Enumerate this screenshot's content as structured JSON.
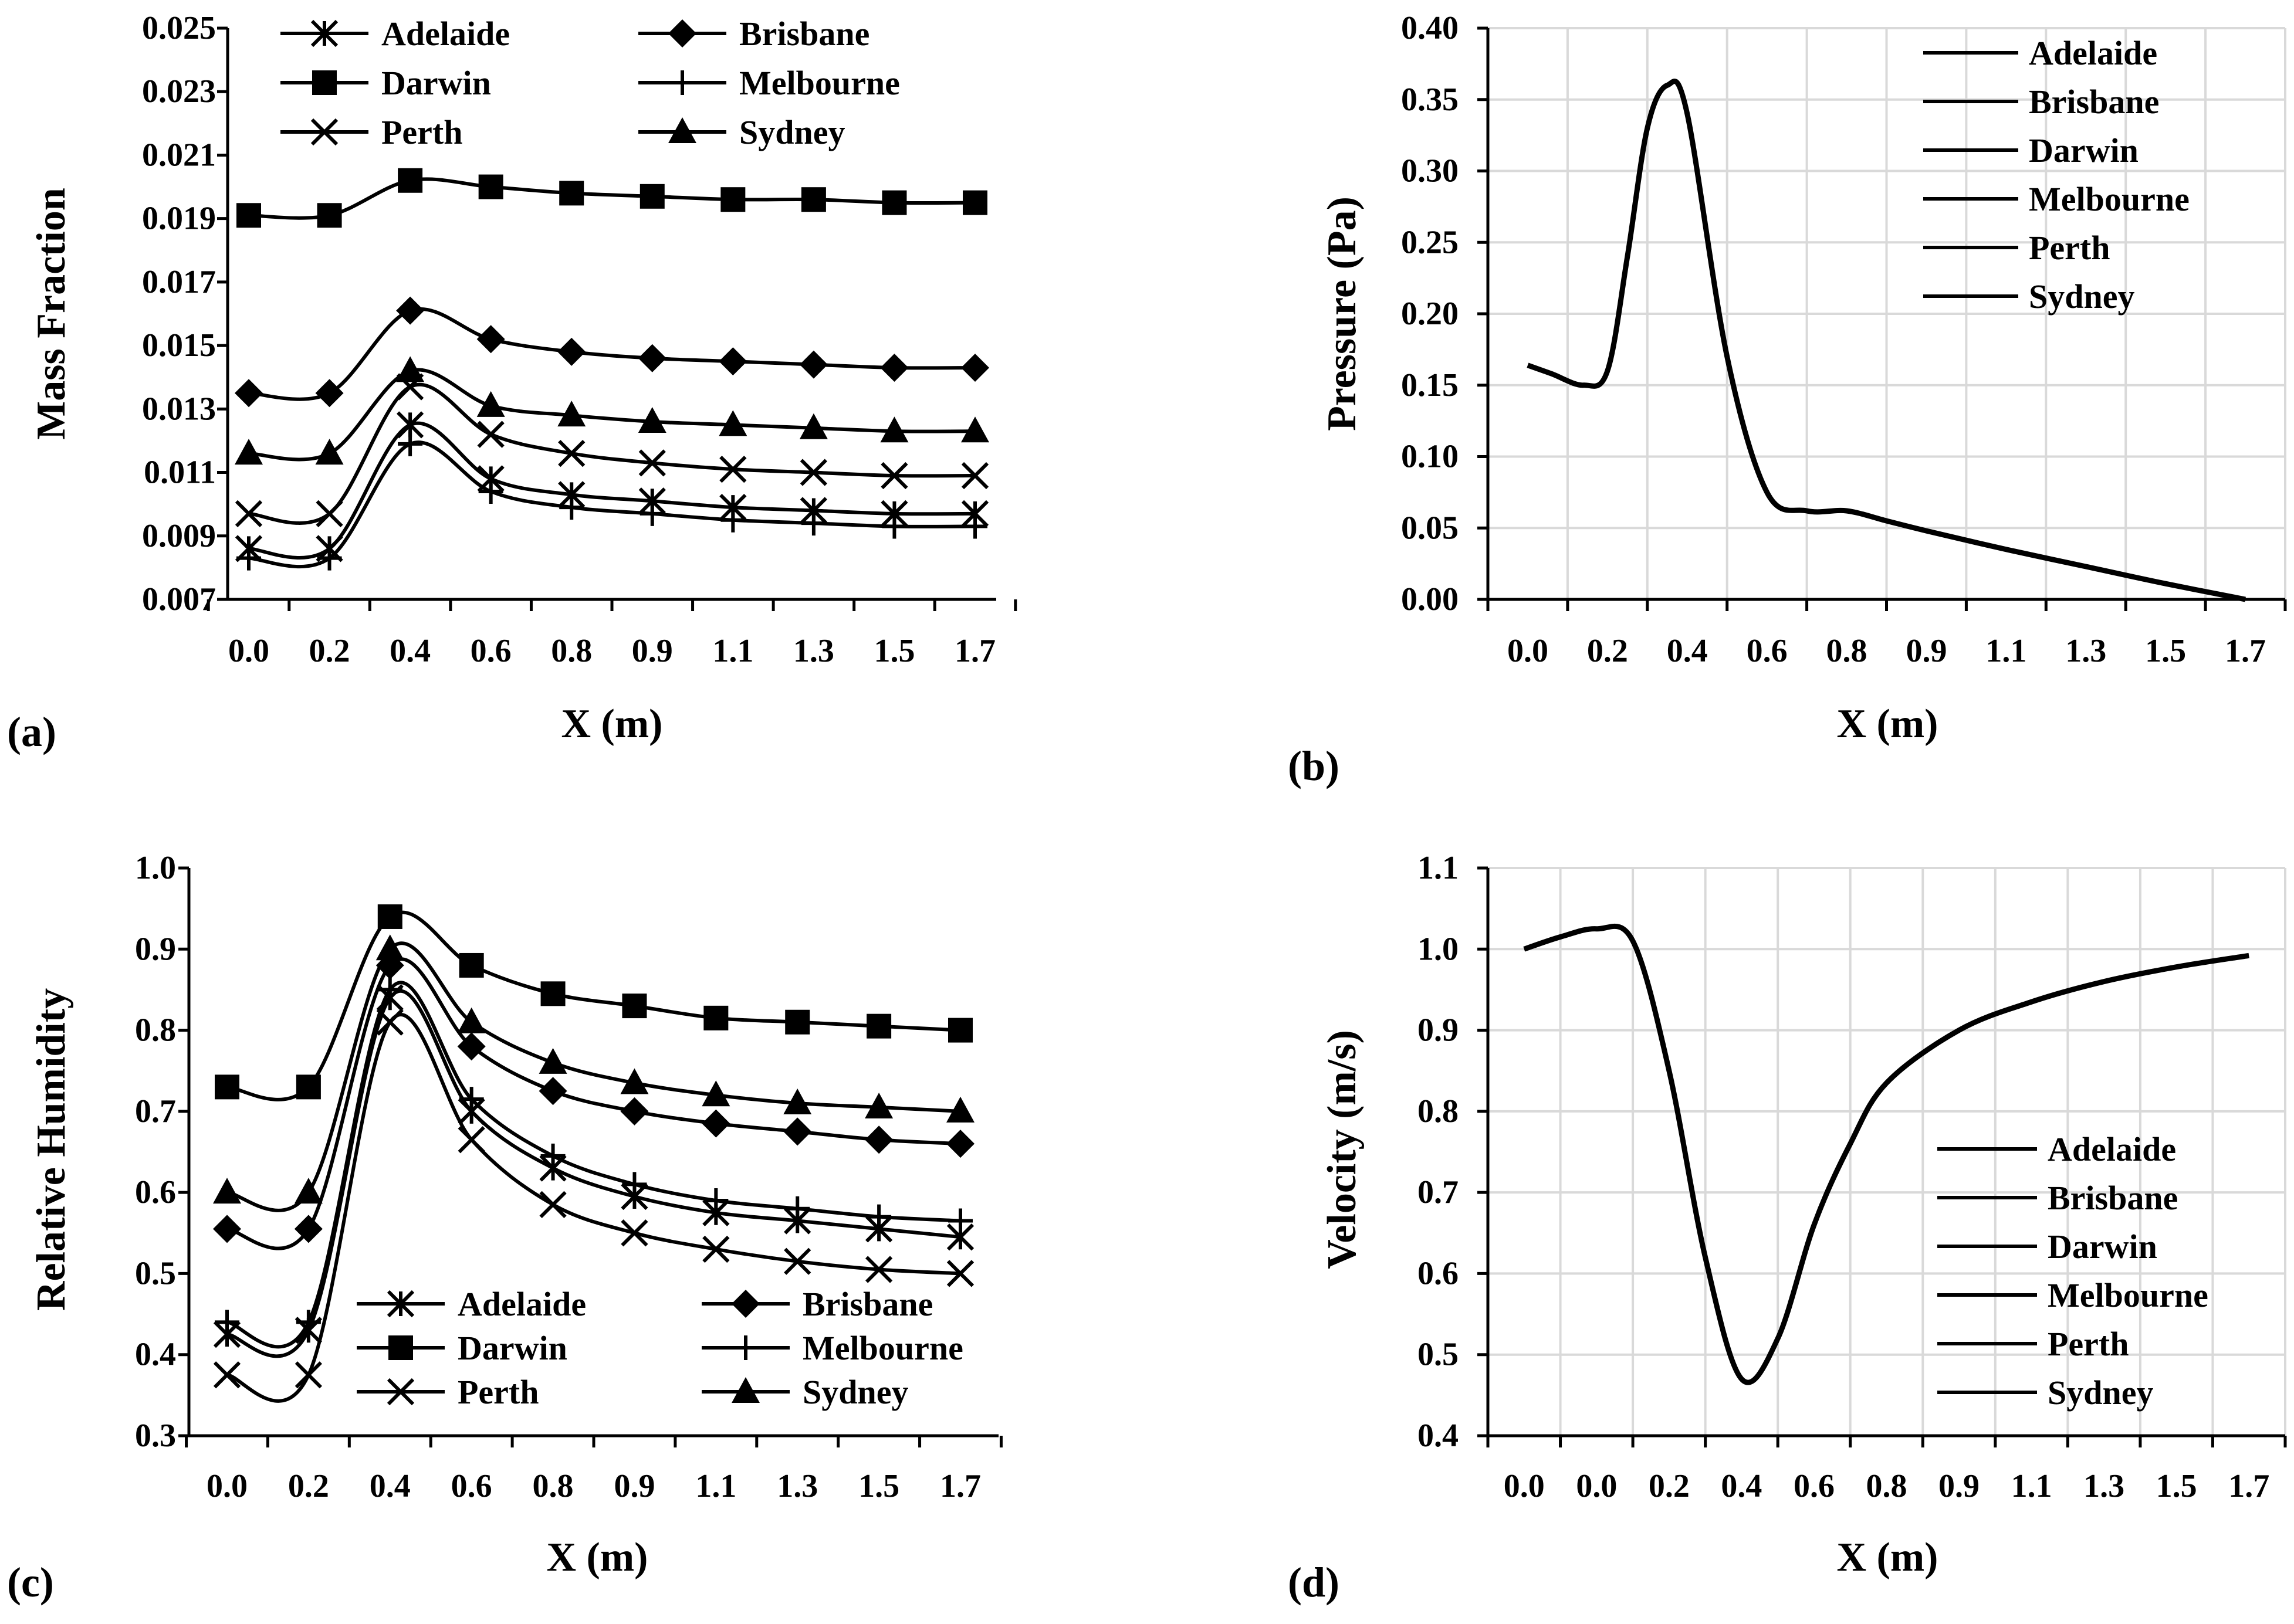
{
  "figure": {
    "panels": [
      "(a)",
      "(b)",
      "(c)",
      "(d)"
    ],
    "marker_names": {
      "Adelaide": "asterisk",
      "Brisbane": "diamond",
      "Darwin": "square",
      "Melbourne": "plus",
      "Perth": "cross",
      "Sydney": "triangle"
    },
    "line_color": "#000000",
    "grid_color": "#d9d9d9",
    "background": "#ffffff"
  },
  "chart_data": [
    {
      "id": "a",
      "type": "line",
      "panel_label": "(a)",
      "xlabel": "X (m)",
      "ylabel": "Mass Fraction",
      "categories": [
        "0.0",
        "0.2",
        "0.4",
        "0.6",
        "0.8",
        "0.9",
        "1.1",
        "1.3",
        "1.5",
        "1.7"
      ],
      "yticks": [
        "0.007",
        "0.009",
        "0.011",
        "0.013",
        "0.015",
        "0.017",
        "0.019",
        "0.021",
        "0.023",
        "0.025"
      ],
      "ylim": [
        0.007,
        0.025
      ],
      "grid": false,
      "legend_position": "top",
      "legend_columns": 2,
      "series": [
        {
          "name": "Adelaide",
          "marker": "asterisk",
          "values": [
            0.0086,
            0.0086,
            0.0125,
            0.0108,
            0.0103,
            0.0101,
            0.0099,
            0.0098,
            0.0097,
            0.0097
          ]
        },
        {
          "name": "Brisbane",
          "marker": "diamond",
          "values": [
            0.0135,
            0.0135,
            0.0161,
            0.0152,
            0.0148,
            0.0146,
            0.0145,
            0.0144,
            0.0143,
            0.0143
          ]
        },
        {
          "name": "Darwin",
          "marker": "square",
          "values": [
            0.0191,
            0.0191,
            0.0202,
            0.02,
            0.0198,
            0.0197,
            0.0196,
            0.0196,
            0.0195,
            0.0195
          ]
        },
        {
          "name": "Melbourne",
          "marker": "plus",
          "values": [
            0.0083,
            0.0083,
            0.0119,
            0.0104,
            0.0099,
            0.0097,
            0.0095,
            0.0094,
            0.0093,
            0.0093
          ]
        },
        {
          "name": "Perth",
          "marker": "cross",
          "values": [
            0.0097,
            0.0097,
            0.0137,
            0.0122,
            0.0116,
            0.0113,
            0.0111,
            0.011,
            0.0109,
            0.0109
          ]
        },
        {
          "name": "Sydney",
          "marker": "triangle",
          "values": [
            0.0116,
            0.0116,
            0.0142,
            0.0131,
            0.0128,
            0.0126,
            0.0125,
            0.0124,
            0.0123,
            0.0123
          ]
        }
      ]
    },
    {
      "id": "b",
      "type": "line",
      "panel_label": "(b)",
      "xlabel": "X (m)",
      "ylabel": "Pressure (Pa)",
      "categories": [
        "0.0",
        "0.2",
        "0.4",
        "0.6",
        "0.8",
        "0.9",
        "1.1",
        "1.3",
        "1.5",
        "1.7"
      ],
      "yticks": [
        "0.00",
        "0.05",
        "0.10",
        "0.15",
        "0.20",
        "0.25",
        "0.30",
        "0.35",
        "0.40"
      ],
      "ylim": [
        0.0,
        0.4
      ],
      "grid": true,
      "legend_position": "top-right",
      "legend_columns": 1,
      "curve_x_range": [
        0,
        9
      ],
      "curve": {
        "x": [
          0,
          0.3,
          0.7,
          1.0,
          1.25,
          1.5,
          1.75,
          2.0,
          2.5,
          3.0,
          3.5,
          4.0,
          4.5,
          5.0,
          6.0,
          7.0,
          8.0,
          9.0
        ],
        "y": [
          0.164,
          0.158,
          0.15,
          0.16,
          0.24,
          0.33,
          0.36,
          0.34,
          0.17,
          0.075,
          0.062,
          0.062,
          0.055,
          0.048,
          0.035,
          0.023,
          0.011,
          0.0
        ]
      },
      "series": [
        {
          "name": "Adelaide"
        },
        {
          "name": "Brisbane"
        },
        {
          "name": "Darwin"
        },
        {
          "name": "Melbourne"
        },
        {
          "name": "Perth"
        },
        {
          "name": "Sydney"
        }
      ]
    },
    {
      "id": "c",
      "type": "line",
      "panel_label": "(c)",
      "xlabel": "X (m)",
      "ylabel": "Relative Humidity",
      "categories": [
        "0.0",
        "0.2",
        "0.4",
        "0.6",
        "0.8",
        "0.9",
        "1.1",
        "1.3",
        "1.5",
        "1.7"
      ],
      "yticks": [
        "0.3",
        "0.4",
        "0.5",
        "0.6",
        "0.7",
        "0.8",
        "0.9",
        "1.0"
      ],
      "ylim": [
        0.3,
        1.0
      ],
      "grid": false,
      "legend_position": "bottom",
      "legend_columns": 2,
      "series": [
        {
          "name": "Adelaide",
          "marker": "asterisk",
          "values": [
            0.425,
            0.43,
            0.84,
            0.7,
            0.63,
            0.595,
            0.575,
            0.565,
            0.555,
            0.545
          ]
        },
        {
          "name": "Brisbane",
          "marker": "diamond",
          "values": [
            0.555,
            0.555,
            0.88,
            0.78,
            0.725,
            0.7,
            0.685,
            0.675,
            0.665,
            0.66
          ]
        },
        {
          "name": "Darwin",
          "marker": "square",
          "values": [
            0.73,
            0.73,
            0.94,
            0.88,
            0.845,
            0.83,
            0.815,
            0.81,
            0.805,
            0.8
          ]
        },
        {
          "name": "Melbourne",
          "marker": "plus",
          "values": [
            0.44,
            0.44,
            0.85,
            0.715,
            0.645,
            0.61,
            0.59,
            0.58,
            0.57,
            0.565
          ]
        },
        {
          "name": "Perth",
          "marker": "cross",
          "values": [
            0.375,
            0.375,
            0.81,
            0.665,
            0.585,
            0.55,
            0.53,
            0.515,
            0.505,
            0.5
          ]
        },
        {
          "name": "Sydney",
          "marker": "triangle",
          "values": [
            0.6,
            0.6,
            0.9,
            0.81,
            0.76,
            0.735,
            0.72,
            0.71,
            0.705,
            0.7
          ]
        }
      ]
    },
    {
      "id": "d",
      "type": "line",
      "panel_label": "(d)",
      "xlabel": "X (m)",
      "ylabel": "Velocity (m/s)",
      "categories": [
        "0.0",
        "0.0",
        "0.2",
        "0.4",
        "0.6",
        "0.8",
        "0.9",
        "1.1",
        "1.3",
        "1.5",
        "1.7"
      ],
      "yticks": [
        "0.4",
        "0.5",
        "0.6",
        "0.7",
        "0.8",
        "0.9",
        "1.0",
        "1.1"
      ],
      "ylim": [
        0.4,
        1.1
      ],
      "grid": true,
      "legend_position": "bottom-right",
      "legend_columns": 1,
      "curve_x_range": [
        0,
        10
      ],
      "curve": {
        "x": [
          0,
          0.5,
          1.0,
          1.5,
          2.0,
          2.5,
          3.0,
          3.5,
          4.0,
          4.5,
          5.0,
          6.0,
          7.0,
          8.0,
          9.0,
          10.0
        ],
        "y": [
          1.0,
          1.015,
          1.025,
          1.01,
          0.85,
          0.62,
          0.47,
          0.52,
          0.66,
          0.76,
          0.835,
          0.9,
          0.935,
          0.96,
          0.978,
          0.992
        ]
      },
      "series": [
        {
          "name": "Adelaide"
        },
        {
          "name": "Brisbane"
        },
        {
          "name": "Darwin"
        },
        {
          "name": "Melbourne"
        },
        {
          "name": "Perth"
        },
        {
          "name": "Sydney"
        }
      ]
    }
  ]
}
